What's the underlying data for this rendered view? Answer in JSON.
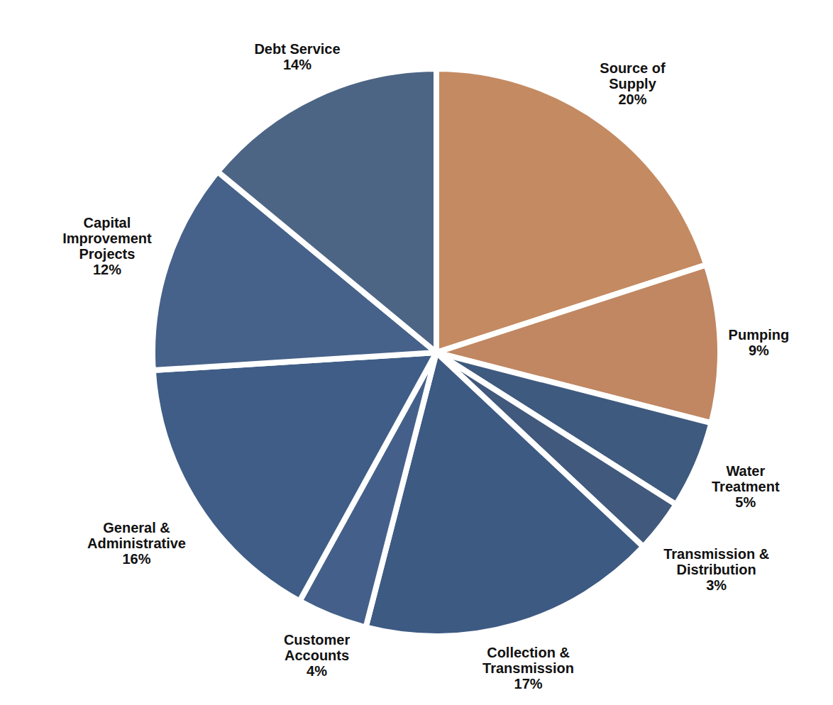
{
  "chart_data": {
    "type": "pie",
    "categories": [
      "Source of Supply",
      "Pumping",
      "Water Treatment",
      "Transmission & Distribution",
      "Collection & Transmission",
      "Customer Accounts",
      "General & Administrative",
      "Capital Improvement Projects",
      "Debt Service"
    ],
    "values": [
      20,
      9,
      5,
      3,
      17,
      4,
      16,
      12,
      14
    ],
    "value_labels": [
      "20%",
      "9%",
      "5%",
      "3%",
      "17%",
      "4%",
      "16%",
      "12%",
      "14%"
    ],
    "colors": [
      "#c48a62",
      "#c08762",
      "#3f5a7f",
      "#41597c",
      "#3d5a83",
      "#44608a",
      "#3f5d86",
      "#46628a",
      "#4d6585"
    ],
    "data_labels": true
  }
}
